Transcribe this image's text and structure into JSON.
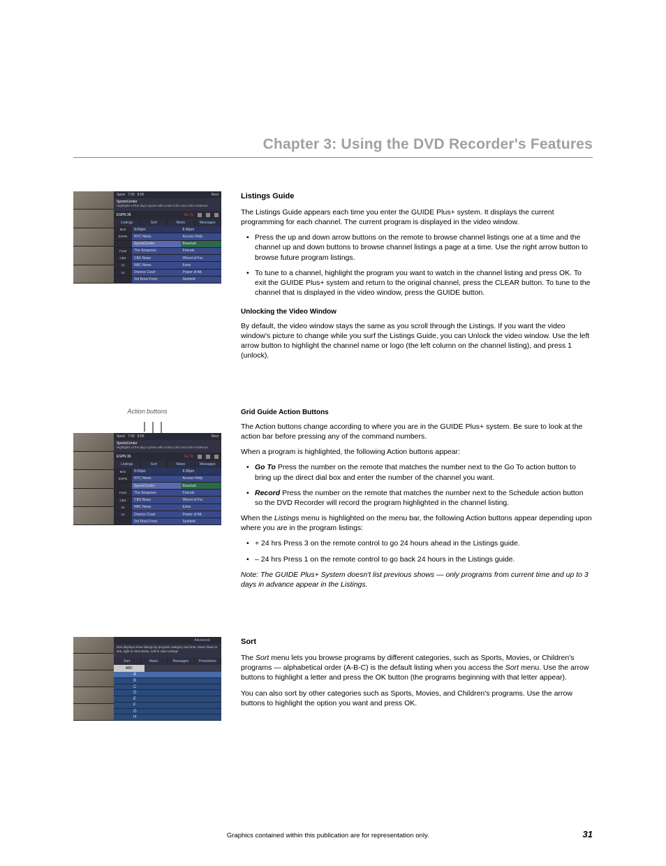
{
  "chapter_title": "Chapter 3: Using the DVD Recorder's Features",
  "listings": {
    "heading": "Listings Guide",
    "intro": "The Listings Guide appears each time you enter the GUIDE Plus+ system. It displays the current programming for each channel. The current program is displayed in the video window.",
    "bullets": [
      "Press the up and down arrow buttons on the remote to browse channel listings one at a time and the channel up and down buttons to browse channel listings a page at a time. Use the right arrow button to browse future program listings.",
      "To tune to a channel, highlight the program you want to watch in the channel listing and press OK. To exit the GUIDE Plus+ system and return to the original channel, press the CLEAR button. To tune to the channel that is displayed in the video window, press the GUIDE button."
    ],
    "unlock_head": "Unlocking the Video Window",
    "unlock_body": "By default, the video window stays the same as you scroll through the Listings. If you want the video window's picture to change while you surf the Listings Guide, you can Unlock the video window. Use the left arrow button to highlight the channel name or logo (the left column on the channel listing), and press 1 (unlock)."
  },
  "action_caption": "Action buttons",
  "grid": {
    "heading": "Grid Guide Action Buttons",
    "intro": "The Action buttons change according to where you are in the GUIDE Plus+ system. Be sure to look at the action bar before pressing any of the command numbers.",
    "when_prog": "When a program is highlighted, the following Action buttons appear:",
    "bullets1": [
      {
        "name": "Go To",
        "text": "   Press the number on the remote that matches the number next to the Go To action button to bring up the direct dial box and enter the number of the channel you want."
      },
      {
        "name": "Record",
        "text": "   Press the number on the remote that matches the number next to the Schedule action button so the DVD Recorder will record the program highlighted in the channel listing."
      }
    ],
    "when_listings_pre": "When the ",
    "when_listings_em": "Listings",
    "when_listings_post": " menu is highlighted on the menu bar, the following Action buttons appear depending upon where you are in the program listings:",
    "bullets2": [
      "+ 24 hrs   Press 3 on the remote control to go 24 hours ahead in the Listings guide.",
      "– 24 hrs   Press 1 on the remote control to go back 24 hours in the Listings guide."
    ],
    "note": "Note: The GUIDE Plus+ System doesn't list previous shows — only programs from current time and up to 3 days in advance appear in the Listings."
  },
  "sort": {
    "heading": "Sort",
    "p1_pre": "The ",
    "p1_em1": "Sort",
    "p1_mid": " menu lets you browse programs by different categories, such as Sports, Movies, or Children's programs — alphabetical order (A-B-C) is the default listing when you access the ",
    "p1_em2": "Sort",
    "p1_post": " menu. Use the arrow buttons to highlight a letter and press the OK button (the programs beginning with that letter appear).",
    "p2": "You can also sort by other categories such as Sports, Movies, and Children's programs. Use the arrow buttons to highlight the option you want and press OK."
  },
  "footer_text": "Graphics contained within this publication are for representation only.",
  "page_number": "31",
  "thumb": {
    "top_labels": [
      "Sport",
      "7:30",
      "8:00",
      "Next"
    ],
    "desc_title": "SportsCenter",
    "desc_sub": "Highlights of the day's sports with Linda Cohn and John Anderson",
    "act_label": "ESPN 36",
    "act_red": "Go To",
    "menu": [
      "Listings",
      "Sort",
      "News",
      "Messages"
    ],
    "rows": [
      {
        "ch": "Mon",
        "p1": "8:00pm",
        "p2": "8:30pm",
        "c1": "dblue",
        "c2": "dblue"
      },
      {
        "ch": "ESPN",
        "p1": "NYC News",
        "p2": "Access Holly.",
        "c1": "blue",
        "c2": "blue"
      },
      {
        "ch": "",
        "p1": "SportsCenter",
        "p2": "Baseball",
        "c1": "hl",
        "c2": "green"
      },
      {
        "ch": "Fox5",
        "p1": "The Simpsons",
        "p2": "Friends",
        "c1": "blue",
        "c2": "blue"
      },
      {
        "ch": "CBS",
        "p1": "CBS News",
        "p2": "Wheel of For.",
        "c1": "blue",
        "c2": "blue"
      },
      {
        "ch": "41",
        "p1": "NBC News",
        "p2": "Extra",
        "c1": "blue",
        "c2": "blue"
      },
      {
        "ch": "13",
        "p1": "Divorce Court",
        "p2": "Power of Att.",
        "c1": "blue",
        "c2": "blue"
      },
      {
        "ch": "",
        "p1": "3rd Rock From.",
        "p2": "Seinfeld",
        "c1": "blue",
        "c2": "blue"
      }
    ]
  },
  "sort_thumb": {
    "top": [
      "",
      "",
      "",
      "Advanced"
    ],
    "desc": "Sort displays show listings by program category and time. Move down to see, right to view News, Left to view Listings",
    "menu": [
      "Sort",
      "Music",
      "Messages",
      "Promotions"
    ],
    "selected": "ABC",
    "letters": [
      "A",
      "B",
      "C",
      "D",
      "E",
      "F",
      "G",
      "H"
    ]
  }
}
